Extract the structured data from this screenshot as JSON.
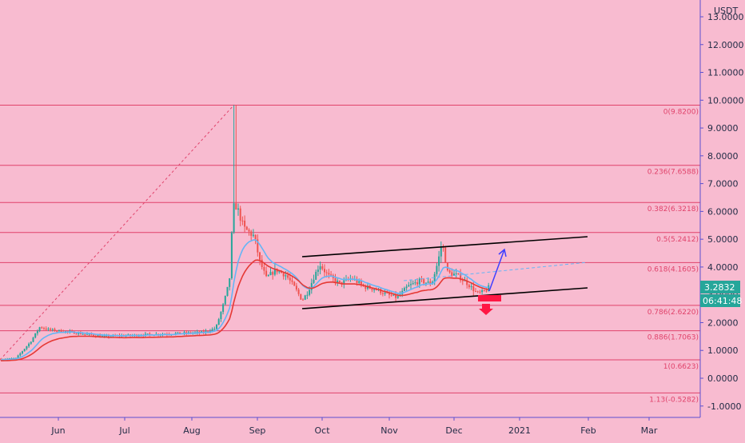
{
  "chart_data": {
    "type": "candlestick",
    "currency": "USDT",
    "x_ticks": [
      "Jun",
      "Jul",
      "Aug",
      "Sep",
      "Oct",
      "Nov",
      "Dec",
      "2021",
      "Feb",
      "Mar"
    ],
    "y_ticks": [
      "13.0000",
      "12.0000",
      "11.0000",
      "10.0000",
      "9.0000",
      "8.0000",
      "7.0000",
      "6.0000",
      "5.0000",
      "4.0000",
      "3.0000",
      "2.0000",
      "1.0000",
      "0.0000",
      "-1.0000"
    ],
    "ylim": [
      -1.3,
      13.5
    ],
    "fib_levels": [
      {
        "label": "0(9.8200)",
        "value": 9.82
      },
      {
        "label": "0.236(7.6588)",
        "value": 7.6588
      },
      {
        "label": "0.382(6.3218)",
        "value": 6.3218
      },
      {
        "label": "0.5(5.2412)",
        "value": 5.2412
      },
      {
        "label": "0.618(4.1605)",
        "value": 4.1605
      },
      {
        "label": "0.786(2.6220)",
        "value": 2.622
      },
      {
        "label": "0.886(1.7063)",
        "value": 1.7063
      },
      {
        "label": "1(0.6623)",
        "value": 0.6623
      },
      {
        "label": "1.13(-0.5282)",
        "value": -0.5282
      }
    ],
    "last_price": "3.2832",
    "countdown": "06:41:48",
    "colors": {
      "background": "#f8bbd0",
      "fib_line": "#e0436b",
      "up_candle": "#26a69a",
      "down_candle": "#ef5350",
      "ema_fast": "#64b5f6",
      "ema_slow": "#e53935",
      "channel": "#000000",
      "up_arrow": "#3f3fff",
      "down_arrow": "#ff1744",
      "price_tag": "#26a69a"
    }
  }
}
